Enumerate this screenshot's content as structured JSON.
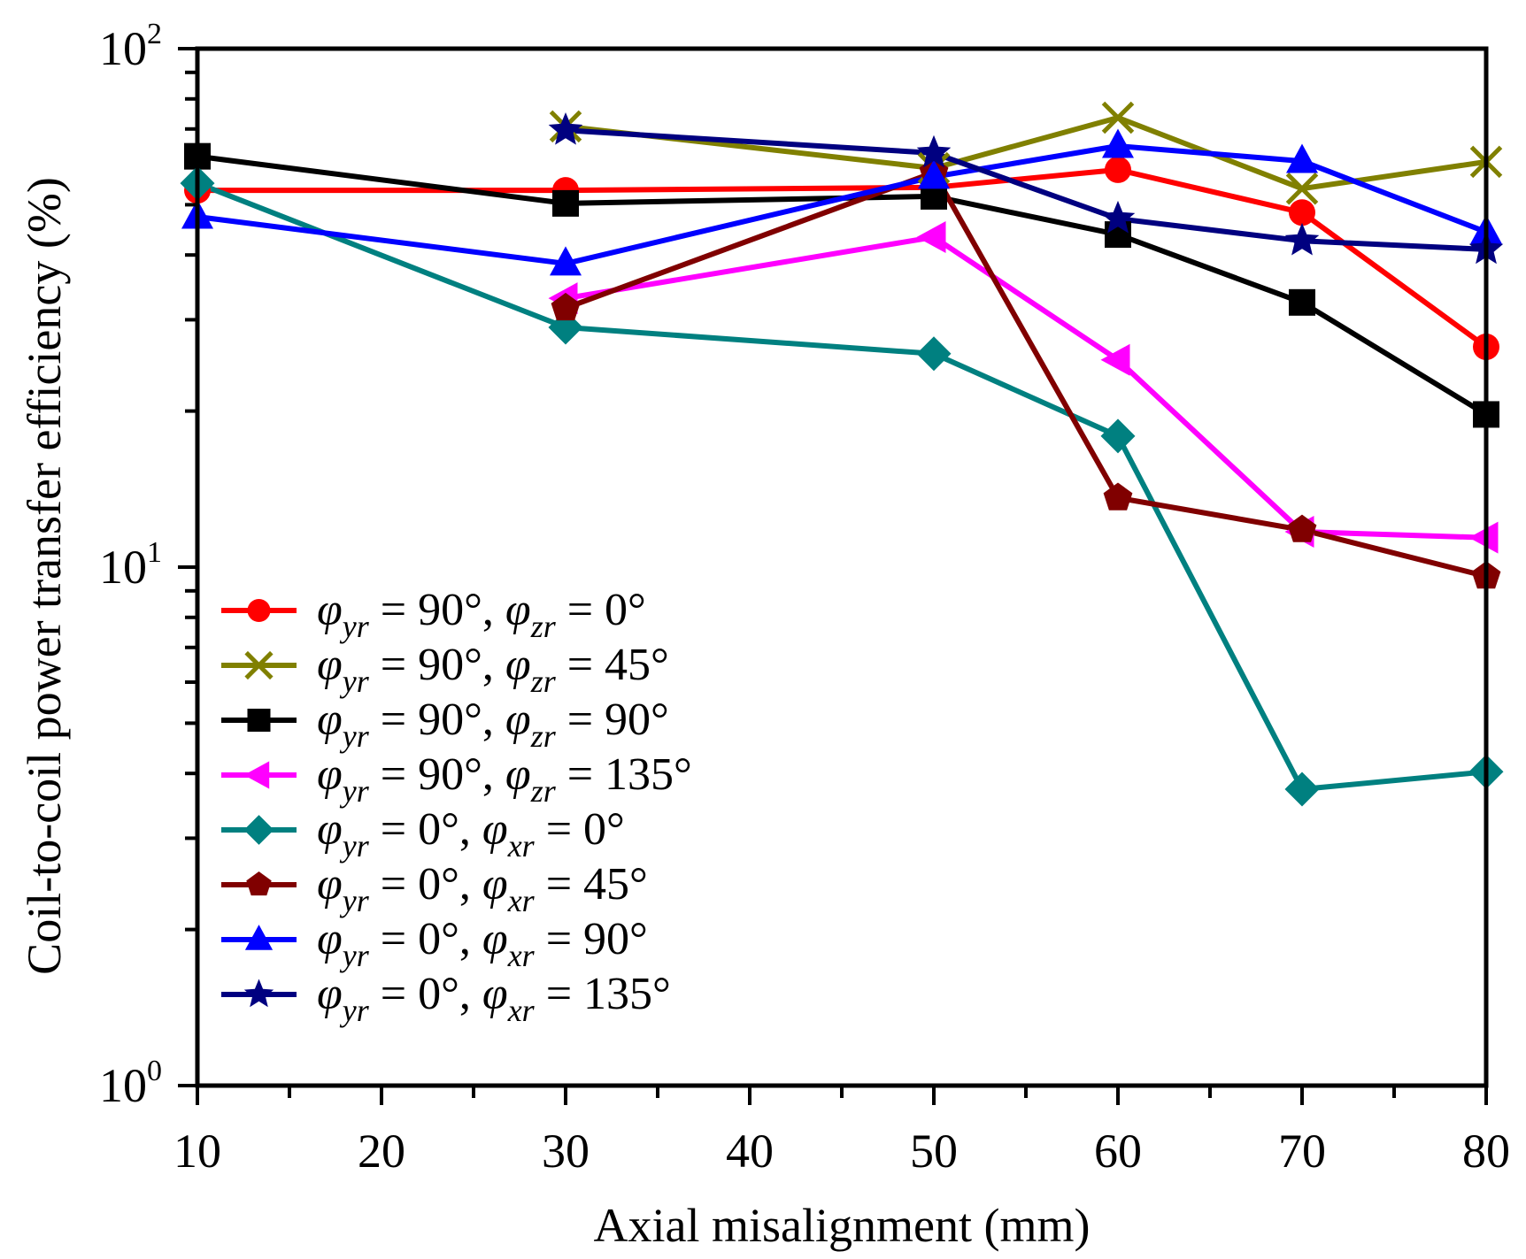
{
  "chart_data": {
    "type": "line",
    "title": "",
    "xlabel": "Axial misalignment (mm)",
    "ylabel": "Coil-to-coil power transfer efficiency (%)",
    "xscale": "linear",
    "yscale": "log",
    "xlim": [
      10,
      80
    ],
    "ylim": [
      1,
      100
    ],
    "x_ticks": [
      10,
      20,
      30,
      40,
      50,
      60,
      70,
      80
    ],
    "x_tick_labels": [
      "10",
      "20",
      "30",
      "40",
      "50",
      "60",
      "70",
      "80"
    ],
    "y_ticks": [
      1,
      10,
      100
    ],
    "y_tick_labels": [
      {
        "base": "10",
        "exp": "0"
      },
      {
        "base": "10",
        "exp": "1"
      },
      {
        "base": "10",
        "exp": "2"
      }
    ],
    "grid": false,
    "legend_position": "lower-left",
    "series": [
      {
        "name": "φyr = 90°, φzr = 0°",
        "label_parts": {
          "a_sub": "yr",
          "a_val": "90°",
          "b_sub": "zr",
          "b_val": "0°"
        },
        "color": "#ff0000",
        "marker": "circle",
        "x": [
          10,
          30,
          50,
          60,
          70,
          80
        ],
        "y": [
          53.3,
          53.3,
          54.0,
          58.4,
          48.3,
          26.6
        ]
      },
      {
        "name": "φyr = 90°, φzr = 45°",
        "label_parts": {
          "a_sub": "yr",
          "a_val": "90°",
          "b_sub": "zr",
          "b_val": "45°"
        },
        "color": "#808000",
        "marker": "x",
        "x": [
          30,
          50,
          60,
          70,
          80
        ],
        "y": [
          70.8,
          58.8,
          73.6,
          53.7,
          60.5
        ]
      },
      {
        "name": "φyr = 90°, φzr = 90°",
        "label_parts": {
          "a_sub": "yr",
          "a_val": "90°",
          "b_sub": "zr",
          "b_val": "90°"
        },
        "color": "#000000",
        "marker": "square",
        "x": [
          10,
          30,
          50,
          60,
          70,
          80
        ],
        "y": [
          62.0,
          50.3,
          51.9,
          43.8,
          32.4,
          19.7
        ]
      },
      {
        "name": "φyr = 90°, φzr = 135°",
        "label_parts": {
          "a_sub": "yr",
          "a_val": "90°",
          "b_sub": "zr",
          "b_val": "135°"
        },
        "color": "#ff00ff",
        "marker": "triangle-left",
        "x": [
          30,
          50,
          60,
          70,
          80
        ],
        "y": [
          33.0,
          43.3,
          25.1,
          11.7,
          11.4
        ]
      },
      {
        "name": "φyr = 0°, φxr = 0°",
        "label_parts": {
          "a_sub": "yr",
          "a_val": "0°",
          "b_sub": "xr",
          "b_val": "0°"
        },
        "color": "#008080",
        "marker": "diamond",
        "x": [
          10,
          30,
          50,
          60,
          70,
          80
        ],
        "y": [
          55.0,
          29.0,
          25.8,
          17.9,
          3.73,
          4.03
        ]
      },
      {
        "name": "φyr = 0°, φxr = 45°",
        "label_parts": {
          "a_sub": "yr",
          "a_val": "0°",
          "b_sub": "xr",
          "b_val": "45°"
        },
        "color": "#800000",
        "marker": "pentagon",
        "x": [
          30,
          50,
          60,
          70,
          80
        ],
        "y": [
          31.6,
          57.7,
          13.6,
          11.8,
          9.6
        ]
      },
      {
        "name": "φyr = 0°, φxr = 90°",
        "label_parts": {
          "a_sub": "yr",
          "a_val": "0°",
          "b_sub": "xr",
          "b_val": "90°"
        },
        "color": "#0000ff",
        "marker": "triangle-up",
        "x": [
          10,
          30,
          50,
          60,
          70,
          80
        ],
        "y": [
          47.4,
          38.5,
          56.6,
          64.9,
          60.7,
          44.3
        ]
      },
      {
        "name": "φyr = 0°, φxr = 135°",
        "label_parts": {
          "a_sub": "yr",
          "a_val": "0°",
          "b_sub": "xr",
          "b_val": "135°"
        },
        "color": "#000080",
        "marker": "star",
        "x": [
          30,
          50,
          60,
          70,
          80
        ],
        "y": [
          69.6,
          62.9,
          47.0,
          42.6,
          41.0
        ]
      }
    ]
  },
  "legend": {
    "phi": "φ",
    "eq": " = ",
    "comma": ", "
  }
}
